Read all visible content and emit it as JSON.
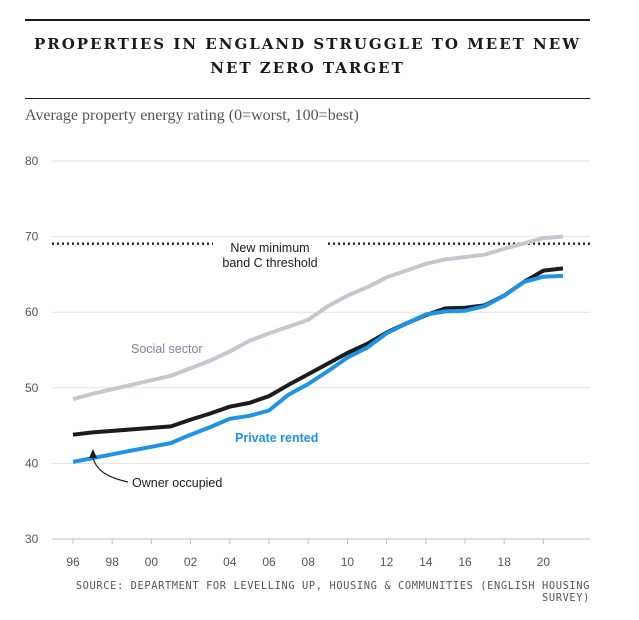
{
  "title": "PROPERTIES IN ENGLAND STRUGGLE TO MEET NEW NET ZERO TARGET",
  "subtitle": "Average property energy rating (0=worst, 100=best)",
  "source": "SOURCE: DEPARTMENT FOR LEVELLING UP, HOUSING & COMMUNITIES (ENGLISH HOUSING SURVEY)",
  "chart_data": {
    "type": "line",
    "x": [
      1996,
      1997,
      1998,
      1999,
      2000,
      2001,
      2002,
      2003,
      2004,
      2005,
      2006,
      2007,
      2008,
      2009,
      2010,
      2011,
      2012,
      2013,
      2014,
      2015,
      2016,
      2017,
      2018,
      2019,
      2020,
      2021
    ],
    "x_tick_values": [
      1996,
      1998,
      2000,
      2002,
      2004,
      2006,
      2008,
      2010,
      2012,
      2014,
      2016,
      2018,
      2020
    ],
    "x_tick_labels": [
      "96",
      "98",
      "00",
      "02",
      "04",
      "06",
      "08",
      "10",
      "12",
      "14",
      "16",
      "18",
      "20"
    ],
    "y_ticks": [
      30,
      40,
      50,
      60,
      70,
      80
    ],
    "ylim": [
      30,
      80
    ],
    "grid": true,
    "series": [
      {
        "name": "Social sector",
        "color": "#c3c7ce",
        "values": [
          48.5,
          49.2,
          49.8,
          50.4,
          51.0,
          51.6,
          52.6,
          53.6,
          54.8,
          56.2,
          57.2,
          58.1,
          59.0,
          60.8,
          62.2,
          63.3,
          64.6,
          65.5,
          66.4,
          67.0,
          67.3,
          67.6,
          68.4,
          69.1,
          69.8,
          70.0
        ]
      },
      {
        "name": "Owner occupied",
        "color": "#1c1c1c",
        "values": [
          43.8,
          44.1,
          44.3,
          44.5,
          44.7,
          44.9,
          45.8,
          46.6,
          47.5,
          48.0,
          48.9,
          50.4,
          51.8,
          53.2,
          54.6,
          55.8,
          57.3,
          58.5,
          59.6,
          60.5,
          60.6,
          60.9,
          62.2,
          64.0,
          65.5,
          65.8
        ]
      },
      {
        "name": "Private rented",
        "color": "#1f93e6",
        "values": [
          40.2,
          40.7,
          41.2,
          41.7,
          42.2,
          42.7,
          43.8,
          44.8,
          45.9,
          46.3,
          47.0,
          49.1,
          50.5,
          52.2,
          54.0,
          55.3,
          57.2,
          58.5,
          59.7,
          60.1,
          60.2,
          60.8,
          62.2,
          64.0,
          64.7,
          64.8
        ]
      }
    ],
    "reference_line": {
      "value": 69,
      "label_line1": "New minimum",
      "label_line2": "band C threshold",
      "color": "#1c1c1c",
      "style": "dotted"
    },
    "annotations": [
      {
        "text": "Social sector",
        "series": "Social sector",
        "color": "#7d8696"
      },
      {
        "text": "Private rented",
        "series": "Private rented",
        "color": "#1f93e6"
      },
      {
        "text": "Owner occupied",
        "series": "Owner occupied",
        "color": "#1c1c1c"
      }
    ]
  }
}
